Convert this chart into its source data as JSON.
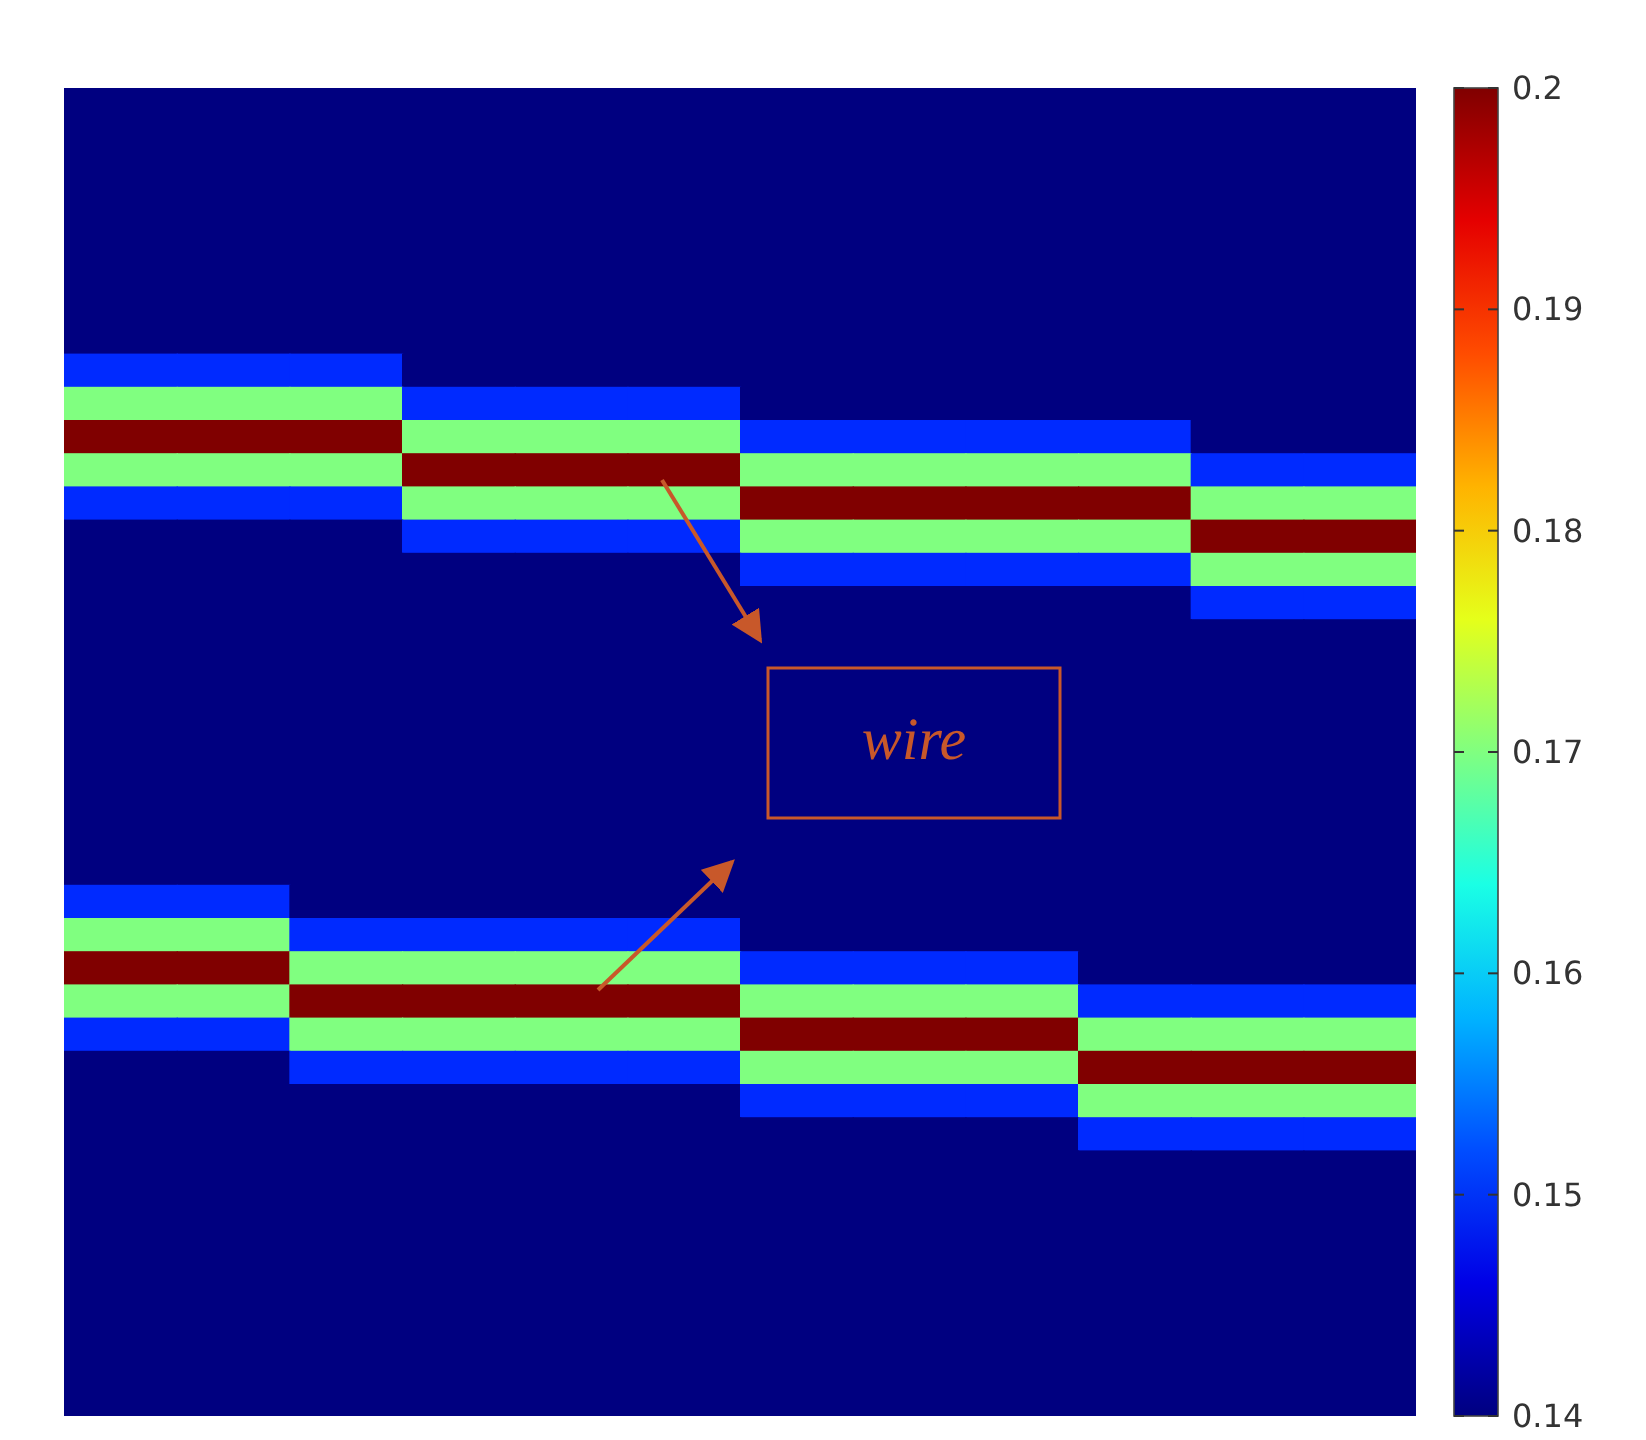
{
  "chart_data": {
    "type": "heatmap",
    "categories": [
      null,
      null,
      null,
      null,
      null,
      null,
      null,
      null,
      null,
      null,
      null,
      null
    ],
    "y_categories": [
      null,
      null,
      null,
      null,
      null,
      null,
      null,
      null,
      null,
      null,
      null,
      null,
      null,
      null,
      null,
      null,
      null,
      null,
      null,
      null,
      null,
      null,
      null,
      null,
      null,
      null,
      null,
      null,
      null,
      null,
      null,
      null,
      null,
      null,
      null,
      null,
      null,
      null,
      null,
      null
    ],
    "clim": [
      0.14,
      0.2
    ],
    "cticks": [
      0.14,
      0.15,
      0.16,
      0.17,
      0.18,
      0.19,
      0.2
    ],
    "annotations": [
      "wire"
    ],
    "cells": [
      [
        0.14,
        0.14,
        0.14,
        0.14,
        0.14,
        0.14,
        0.14,
        0.14,
        0.14,
        0.14,
        0.14,
        0.14
      ],
      [
        0.14,
        0.14,
        0.14,
        0.14,
        0.14,
        0.14,
        0.14,
        0.14,
        0.14,
        0.14,
        0.14,
        0.14
      ],
      [
        0.14,
        0.14,
        0.14,
        0.14,
        0.14,
        0.14,
        0.14,
        0.14,
        0.14,
        0.14,
        0.14,
        0.14
      ],
      [
        0.14,
        0.14,
        0.14,
        0.14,
        0.14,
        0.14,
        0.14,
        0.14,
        0.14,
        0.14,
        0.14,
        0.14
      ],
      [
        0.14,
        0.14,
        0.14,
        0.14,
        0.14,
        0.14,
        0.14,
        0.14,
        0.14,
        0.14,
        0.14,
        0.14
      ],
      [
        0.14,
        0.14,
        0.14,
        0.14,
        0.14,
        0.14,
        0.14,
        0.14,
        0.14,
        0.14,
        0.14,
        0.14
      ],
      [
        0.14,
        0.14,
        0.14,
        0.14,
        0.14,
        0.14,
        0.14,
        0.14,
        0.14,
        0.14,
        0.14,
        0.14
      ],
      [
        0.14,
        0.14,
        0.14,
        0.14,
        0.14,
        0.14,
        0.14,
        0.14,
        0.14,
        0.14,
        0.14,
        0.14
      ],
      [
        0.15,
        0.15,
        0.15,
        0.14,
        0.14,
        0.14,
        0.14,
        0.14,
        0.14,
        0.14,
        0.14,
        0.14
      ],
      [
        0.17,
        0.17,
        0.17,
        0.15,
        0.15,
        0.15,
        0.14,
        0.14,
        0.14,
        0.14,
        0.14,
        0.14
      ],
      [
        0.2,
        0.2,
        0.2,
        0.17,
        0.17,
        0.17,
        0.15,
        0.15,
        0.15,
        0.15,
        0.14,
        0.14
      ],
      [
        0.17,
        0.17,
        0.17,
        0.2,
        0.2,
        0.2,
        0.17,
        0.17,
        0.17,
        0.17,
        0.15,
        0.15
      ],
      [
        0.15,
        0.15,
        0.15,
        0.17,
        0.17,
        0.17,
        0.2,
        0.2,
        0.2,
        0.2,
        0.17,
        0.17
      ],
      [
        0.14,
        0.14,
        0.14,
        0.15,
        0.15,
        0.15,
        0.17,
        0.17,
        0.17,
        0.17,
        0.2,
        0.2
      ],
      [
        0.14,
        0.14,
        0.14,
        0.14,
        0.14,
        0.14,
        0.15,
        0.15,
        0.15,
        0.15,
        0.17,
        0.17
      ],
      [
        0.14,
        0.14,
        0.14,
        0.14,
        0.14,
        0.14,
        0.14,
        0.14,
        0.14,
        0.14,
        0.15,
        0.15
      ],
      [
        0.14,
        0.14,
        0.14,
        0.14,
        0.14,
        0.14,
        0.14,
        0.14,
        0.14,
        0.14,
        0.14,
        0.14
      ],
      [
        0.14,
        0.14,
        0.14,
        0.14,
        0.14,
        0.14,
        0.14,
        0.14,
        0.14,
        0.14,
        0.14,
        0.14
      ],
      [
        0.14,
        0.14,
        0.14,
        0.14,
        0.14,
        0.14,
        0.14,
        0.14,
        0.14,
        0.14,
        0.14,
        0.14
      ],
      [
        0.14,
        0.14,
        0.14,
        0.14,
        0.14,
        0.14,
        0.14,
        0.14,
        0.14,
        0.14,
        0.14,
        0.14
      ],
      [
        0.14,
        0.14,
        0.14,
        0.14,
        0.14,
        0.14,
        0.14,
        0.14,
        0.14,
        0.14,
        0.14,
        0.14
      ],
      [
        0.14,
        0.14,
        0.14,
        0.14,
        0.14,
        0.14,
        0.14,
        0.14,
        0.14,
        0.14,
        0.14,
        0.14
      ],
      [
        0.14,
        0.14,
        0.14,
        0.14,
        0.14,
        0.14,
        0.14,
        0.14,
        0.14,
        0.14,
        0.14,
        0.14
      ],
      [
        0.14,
        0.14,
        0.14,
        0.14,
        0.14,
        0.14,
        0.14,
        0.14,
        0.14,
        0.14,
        0.14,
        0.14
      ],
      [
        0.15,
        0.15,
        0.14,
        0.14,
        0.14,
        0.14,
        0.14,
        0.14,
        0.14,
        0.14,
        0.14,
        0.14
      ],
      [
        0.17,
        0.17,
        0.15,
        0.15,
        0.15,
        0.15,
        0.14,
        0.14,
        0.14,
        0.14,
        0.14,
        0.14
      ],
      [
        0.2,
        0.2,
        0.17,
        0.17,
        0.17,
        0.17,
        0.15,
        0.15,
        0.15,
        0.14,
        0.14,
        0.14
      ],
      [
        0.17,
        0.17,
        0.2,
        0.2,
        0.2,
        0.2,
        0.17,
        0.17,
        0.17,
        0.15,
        0.15,
        0.15
      ],
      [
        0.15,
        0.15,
        0.17,
        0.17,
        0.17,
        0.17,
        0.2,
        0.2,
        0.2,
        0.17,
        0.17,
        0.17
      ],
      [
        0.14,
        0.14,
        0.15,
        0.15,
        0.15,
        0.15,
        0.17,
        0.17,
        0.17,
        0.2,
        0.2,
        0.2
      ],
      [
        0.14,
        0.14,
        0.14,
        0.14,
        0.14,
        0.14,
        0.15,
        0.15,
        0.15,
        0.17,
        0.17,
        0.17
      ],
      [
        0.14,
        0.14,
        0.14,
        0.14,
        0.14,
        0.14,
        0.14,
        0.14,
        0.14,
        0.15,
        0.15,
        0.15
      ],
      [
        0.14,
        0.14,
        0.14,
        0.14,
        0.14,
        0.14,
        0.14,
        0.14,
        0.14,
        0.14,
        0.14,
        0.14
      ],
      [
        0.14,
        0.14,
        0.14,
        0.14,
        0.14,
        0.14,
        0.14,
        0.14,
        0.14,
        0.14,
        0.14,
        0.14
      ],
      [
        0.14,
        0.14,
        0.14,
        0.14,
        0.14,
        0.14,
        0.14,
        0.14,
        0.14,
        0.14,
        0.14,
        0.14
      ],
      [
        0.14,
        0.14,
        0.14,
        0.14,
        0.14,
        0.14,
        0.14,
        0.14,
        0.14,
        0.14,
        0.14,
        0.14
      ],
      [
        0.14,
        0.14,
        0.14,
        0.14,
        0.14,
        0.14,
        0.14,
        0.14,
        0.14,
        0.14,
        0.14,
        0.14
      ],
      [
        0.14,
        0.14,
        0.14,
        0.14,
        0.14,
        0.14,
        0.14,
        0.14,
        0.14,
        0.14,
        0.14,
        0.14
      ],
      [
        0.14,
        0.14,
        0.14,
        0.14,
        0.14,
        0.14,
        0.14,
        0.14,
        0.14,
        0.14,
        0.14,
        0.14
      ],
      [
        0.14,
        0.14,
        0.14,
        0.14,
        0.14,
        0.14,
        0.14,
        0.14,
        0.14,
        0.14,
        0.14,
        0.14
      ]
    ]
  }
}
